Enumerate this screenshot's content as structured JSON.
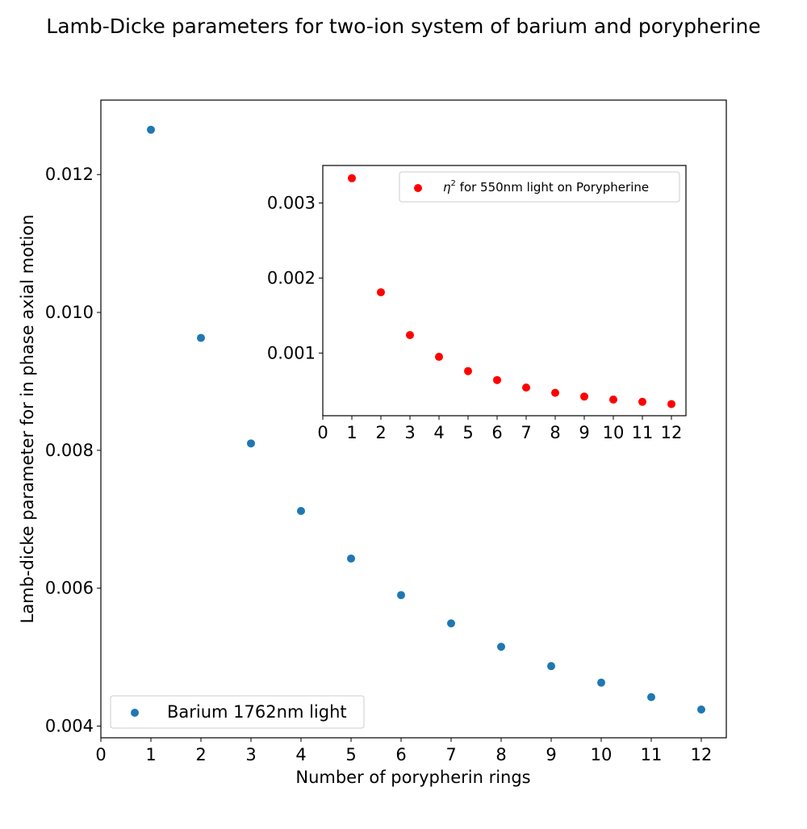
{
  "title": "Lamb-Dicke parameters for two-ion system of barium and porypherine",
  "chart_data": [
    {
      "type": "scatter",
      "xlabel": "Number of porypherin rings",
      "ylabel": "Lamb-dicke parameter for in phase axial motion",
      "xlim": [
        0,
        12.5
      ],
      "ylim": [
        0.00383,
        0.01308
      ],
      "xticks": [
        "0",
        "1",
        "2",
        "3",
        "4",
        "5",
        "6",
        "7",
        "8",
        "9",
        "10",
        "11",
        "12"
      ],
      "yticks": [
        "0.004",
        "0.006",
        "0.008",
        "0.010",
        "0.012"
      ],
      "legend_position": "lower-left",
      "grid": false,
      "series": [
        {
          "name": "Barium 1762nm light",
          "color": "#1f77b4",
          "x": [
            1,
            2,
            3,
            4,
            5,
            6,
            7,
            8,
            9,
            10,
            11,
            12
          ],
          "y": [
            0.01265,
            0.00963,
            0.0081,
            0.00712,
            0.00643,
            0.0059,
            0.00549,
            0.00515,
            0.00487,
            0.00463,
            0.00442,
            0.00424
          ]
        }
      ]
    },
    {
      "type": "scatter",
      "inset": true,
      "xlim": [
        0,
        12.5
      ],
      "ylim": [
        0.000165,
        0.0035
      ],
      "xticks": [
        "0",
        "1",
        "2",
        "3",
        "4",
        "5",
        "6",
        "7",
        "8",
        "9",
        "10",
        "11",
        "12"
      ],
      "yticks": [
        "0.001",
        "0.002",
        "0.003"
      ],
      "legend_position": "upper-right",
      "grid": false,
      "series": [
        {
          "name": "η² for 550nm light on Porypherine",
          "name_parts": {
            "symbol": "η",
            "superscript": "2",
            "rest": " for 550nm light on Porypherine"
          },
          "color": "#ff0000",
          "x": [
            1,
            2,
            3,
            4,
            5,
            6,
            7,
            8,
            9,
            10,
            11,
            12
          ],
          "y": [
            0.00333,
            0.00181,
            0.00124,
            0.00095,
            0.00076,
            0.00064,
            0.00054,
            0.00047,
            0.00042,
            0.00038,
            0.00035,
            0.00032
          ]
        }
      ]
    }
  ]
}
